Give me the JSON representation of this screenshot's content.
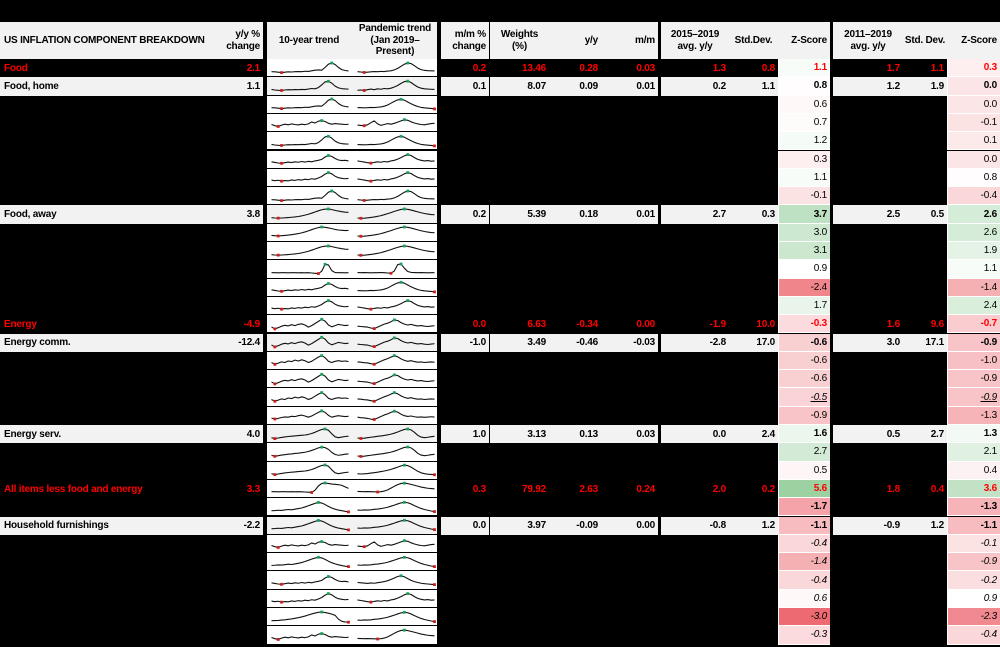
{
  "title": "US INFLATION COMPONENT BREAKDOWN",
  "headers": {
    "yoy_change": "y/y %\nchange",
    "trend10": "10-year trend",
    "trend_pandemic": "Pandemic trend\n(Jan 2019–Present)",
    "mm_change": "m/m %\nchange",
    "weights": "Weights\n(%)",
    "yy": "y/y",
    "mm": "m/m",
    "avg15": "2015–2019\navg. y/y",
    "sd15": "Std.Dev.",
    "z15": "Z-Score",
    "avg11": "2011–2019\navg. y/y",
    "sd11": "Std. Dev.",
    "z11": "Z-Score"
  },
  "colors": {
    "accent_red": "#ff0000",
    "row_gray": "#f2f2f2",
    "table_black": "#000000",
    "z_green_max": "#9cd1a2",
    "z_red_min": "#ed6a72",
    "spark_line": "#111111",
    "spark_max_marker": "#18a05e",
    "spark_min_marker": "#cf1d1d"
  },
  "z_scale": {
    "midpoint": 0.9,
    "green_at": 5.6,
    "red_at": -3.0
  },
  "chart_data": {
    "type": "table",
    "title": "US INFLATION COMPONENT BREAKDOWN",
    "columns": [
      "Component",
      "y/y % change",
      "10-year trend (sparkline)",
      "Pandemic trend Jan 2019–Present (sparkline)",
      "m/m % change",
      "Weights (%)",
      "y/y",
      "m/m",
      "2015–2019 avg. y/y",
      "Std.Dev.",
      "Z-Score",
      "2011–2019 avg. y/y",
      "Std. Dev.",
      "Z-Score"
    ],
    "labeled_rows": [
      [
        "Food",
        "2.1",
        "0.2",
        "13.46",
        "0.28",
        "0.03",
        "1.3",
        "0.8",
        "1.1",
        "1.7",
        "1.1",
        "0.3"
      ],
      [
        "Food, home",
        "1.1",
        "0.1",
        "8.07",
        "0.09",
        "0.01",
        "0.2",
        "1.1",
        "0.8",
        "1.2",
        "1.9",
        "0.0"
      ],
      [
        "Food, away",
        "3.8",
        "0.2",
        "5.39",
        "0.18",
        "0.01",
        "2.7",
        "0.3",
        "3.7",
        "2.5",
        "0.5",
        "2.6"
      ],
      [
        "Energy",
        "-4.9",
        "0.0",
        "6.63",
        "-0.34",
        "0.00",
        "-1.9",
        "10.0",
        "-0.3",
        "1.6",
        "9.6",
        "-0.7"
      ],
      [
        "Energy comm.",
        "-12.4",
        "-1.0",
        "3.49",
        "-0.46",
        "-0.03",
        "-2.8",
        "17.0",
        "-0.6",
        "3.0",
        "17.1",
        "-0.9"
      ],
      [
        "Energy serv.",
        "4.0",
        "1.0",
        "3.13",
        "0.13",
        "0.03",
        "0.0",
        "2.4",
        "1.6",
        "0.5",
        "2.7",
        "1.3"
      ],
      [
        "All items less food and energy",
        "3.3",
        "0.3",
        "79.92",
        "2.63",
        "0.24",
        "2.0",
        "0.2",
        "5.6",
        "1.8",
        "0.4",
        "3.6"
      ],
      [
        "Household furnishings",
        "-2.2",
        "0.0",
        "3.97",
        "-0.09",
        "0.00",
        "-0.8",
        "1.2",
        "-1.1",
        "-0.9",
        "1.2",
        "-1.1"
      ]
    ]
  },
  "spark_templates": {
    "f10": [
      30,
      29,
      27,
      24,
      27,
      29,
      28,
      30,
      31,
      30,
      33,
      32,
      36,
      40,
      42,
      40,
      58,
      80,
      88,
      78,
      58,
      44,
      38,
      35
    ],
    "f10b": [
      32,
      28,
      26,
      25,
      28,
      30,
      29,
      31,
      30,
      32,
      31,
      34,
      38,
      36,
      44,
      62,
      82,
      86,
      74,
      54,
      42,
      37,
      35,
      34
    ],
    "fp": [
      30,
      28,
      25,
      27,
      29,
      31,
      30,
      32,
      31,
      34,
      36,
      42,
      52,
      66,
      80,
      88,
      84,
      70,
      54,
      44,
      39,
      37,
      36,
      35
    ],
    "fpb": [
      26,
      28,
      25,
      30,
      34,
      30,
      36,
      33,
      38,
      36,
      40,
      48,
      58,
      72,
      84,
      87,
      78,
      62,
      48,
      40,
      36,
      34,
      33,
      32
    ],
    "fp_end": [
      31,
      30,
      29,
      30,
      32,
      31,
      33,
      35,
      40,
      48,
      60,
      72,
      82,
      86,
      80,
      68,
      56,
      46,
      38,
      32,
      29,
      27,
      25,
      22
    ],
    "chop10": [
      38,
      30,
      25,
      34,
      40,
      36,
      42,
      38,
      35,
      40,
      37,
      42,
      55,
      48,
      60,
      64,
      58,
      46,
      40,
      44,
      42,
      40,
      38,
      39
    ],
    "chop_p": [
      34,
      32,
      30,
      36,
      50,
      62,
      42,
      32,
      38,
      44,
      40,
      46,
      54,
      62,
      70,
      66,
      56,
      48,
      42,
      38,
      36,
      40,
      44,
      46
    ],
    "wig10": [
      36,
      32,
      28,
      26,
      30,
      34,
      31,
      36,
      33,
      38,
      34,
      39,
      36,
      42,
      46,
      52,
      68,
      78,
      72,
      58,
      48,
      44,
      46,
      42
    ],
    "wig10b": [
      34,
      30,
      33,
      27,
      31,
      29,
      35,
      32,
      37,
      34,
      40,
      37,
      43,
      40,
      48,
      58,
      74,
      84,
      76,
      60,
      50,
      46,
      43,
      45
    ],
    "wig_p": [
      42,
      38,
      34,
      30,
      27,
      32,
      36,
      33,
      38,
      35,
      42,
      46,
      54,
      64,
      76,
      84,
      78,
      64,
      52,
      46,
      42,
      44,
      40,
      42
    ],
    "wig_end": [
      38,
      36,
      34,
      32,
      35,
      33,
      37,
      40,
      44,
      50,
      58,
      68,
      78,
      83,
      76,
      64,
      52,
      44,
      38,
      33,
      30,
      28,
      26,
      24
    ],
    "fa10": [
      30,
      28,
      27,
      28,
      29,
      31,
      33,
      35,
      38,
      42,
      47,
      53,
      60,
      68,
      76,
      83,
      87,
      88,
      84,
      79,
      74,
      70,
      67,
      66
    ],
    "fa10b": [
      32,
      30,
      28,
      30,
      32,
      34,
      37,
      40,
      44,
      49,
      55,
      62,
      70,
      78,
      84,
      88,
      86,
      82,
      77,
      72,
      68,
      66,
      64,
      65
    ],
    "fap": [
      28,
      26,
      27,
      29,
      32,
      35,
      39,
      44,
      50,
      57,
      64,
      72,
      79,
      85,
      88,
      86,
      81,
      75,
      69,
      63,
      58,
      54,
      51,
      50
    ],
    "spike10": [
      30,
      30,
      29,
      30,
      30,
      29,
      30,
      30,
      29,
      30,
      29,
      30,
      28,
      26,
      24,
      40,
      86,
      82,
      44,
      31,
      30,
      30,
      29,
      30
    ],
    "spikep": [
      31,
      30,
      31,
      30,
      29,
      30,
      30,
      31,
      30,
      28,
      26,
      42,
      84,
      88,
      60,
      38,
      32,
      31,
      30,
      31,
      30,
      29,
      30,
      30
    ],
    "e10": [
      35,
      22,
      30,
      40,
      46,
      42,
      50,
      44,
      52,
      56,
      48,
      34,
      44,
      58,
      72,
      86,
      74,
      48,
      36,
      44,
      52,
      48,
      44,
      47
    ],
    "e10b": [
      38,
      26,
      34,
      42,
      38,
      48,
      44,
      54,
      48,
      56,
      50,
      38,
      46,
      60,
      74,
      84,
      70,
      46,
      38,
      46,
      50,
      46,
      48,
      44
    ],
    "e10s": [
      34,
      28,
      32,
      38,
      42,
      40,
      46,
      44,
      50,
      54,
      48,
      40,
      48,
      60,
      72,
      82,
      72,
      52,
      40,
      46,
      50,
      47,
      44,
      46
    ],
    "ep": [
      40,
      38,
      36,
      34,
      28,
      24,
      34,
      44,
      54,
      60,
      70,
      82,
      78,
      64,
      54,
      48,
      52,
      46,
      42,
      44,
      40,
      38,
      41,
      43
    ],
    "epb": [
      42,
      40,
      37,
      35,
      30,
      26,
      36,
      46,
      56,
      64,
      74,
      84,
      76,
      62,
      52,
      46,
      50,
      44,
      40,
      42,
      38,
      40,
      42,
      40
    ],
    "eps": [
      40,
      37,
      35,
      32,
      27,
      25,
      35,
      45,
      55,
      62,
      72,
      80,
      74,
      60,
      50,
      45,
      48,
      43,
      40,
      42,
      39,
      41,
      43,
      41
    ],
    "es10": [
      30,
      24,
      28,
      32,
      35,
      38,
      40,
      42,
      44,
      46,
      48,
      52,
      58,
      66,
      76,
      85,
      88,
      80,
      56,
      36,
      30,
      34,
      38,
      40
    ],
    "es10b": [
      32,
      26,
      30,
      34,
      37,
      40,
      42,
      45,
      47,
      50,
      53,
      58,
      65,
      73,
      82,
      87,
      84,
      72,
      52,
      38,
      33,
      36,
      40,
      42
    ],
    "esp": [
      28,
      25,
      27,
      30,
      33,
      36,
      39,
      42,
      45,
      49,
      54,
      60,
      68,
      77,
      85,
      88,
      82,
      66,
      46,
      34,
      30,
      33,
      37,
      39
    ],
    "esp_end": [
      30,
      28,
      29,
      31,
      34,
      37,
      40,
      44,
      48,
      53,
      59,
      66,
      74,
      82,
      87,
      84,
      74,
      60,
      46,
      36,
      30,
      27,
      25,
      23
    ],
    "core10": [
      30,
      30,
      29,
      30,
      30,
      29,
      30,
      29,
      30,
      29,
      28,
      27,
      25,
      40,
      68,
      85,
      88,
      85,
      81,
      79,
      77,
      72,
      62,
      52
    ],
    "corep": [
      32,
      31,
      30,
      31,
      30,
      29,
      28,
      30,
      34,
      42,
      54,
      66,
      77,
      85,
      87,
      84,
      79,
      73,
      67,
      61,
      57,
      53,
      51,
      49
    ],
    "hh10": [
      30,
      31,
      33,
      32,
      35,
      38,
      36,
      40,
      44,
      48,
      55,
      63,
      71,
      79,
      85,
      81,
      71,
      59,
      48,
      40,
      34,
      30,
      26,
      22
    ],
    "hh10b": [
      32,
      33,
      35,
      34,
      37,
      40,
      38,
      42,
      46,
      51,
      58,
      66,
      74,
      81,
      86,
      82,
      72,
      60,
      50,
      42,
      36,
      31,
      27,
      24
    ],
    "hhp": [
      34,
      33,
      35,
      34,
      36,
      39,
      41,
      44,
      48,
      53,
      60,
      67,
      75,
      82,
      86,
      83,
      75,
      64,
      54,
      45,
      38,
      33,
      28,
      24
    ],
    "drop10": [
      30,
      31,
      32,
      34,
      36,
      39,
      42,
      46,
      50,
      55,
      61,
      68,
      75,
      81,
      86,
      88,
      84,
      80,
      74,
      66,
      40,
      26,
      22,
      20
    ]
  },
  "rows": [
    {
      "label": "Food",
      "type": "total",
      "yoy": "2.1",
      "mm": "0.2",
      "w": "13.46",
      "yy": "0.28",
      "mmc": "0.03",
      "a15": "1.3",
      "sd15": "0.8",
      "z15": "1.1",
      "a11": "1.7",
      "sd11": "1.1",
      "z11": "0.3",
      "s10": "f10",
      "sp": "fp",
      "zs": "b"
    },
    {
      "label": "Food, home",
      "type": "named",
      "yoy": "1.1",
      "mm": "0.1",
      "w": "8.07",
      "yy": "0.09",
      "mmc": "0.01",
      "a15": "0.2",
      "sd15": "1.1",
      "z15": "0.8",
      "a11": "1.2",
      "sd11": "1.9",
      "z11": "0.0",
      "s10": "f10b",
      "sp": "fpb",
      "zs": "b"
    },
    {
      "type": "blank",
      "z15": "0.6",
      "z11": "0.0",
      "s10": "f10",
      "sp": "fp_end",
      "zs": "n"
    },
    {
      "type": "blank",
      "z15": "0.7",
      "z11": "-0.1",
      "s10": "chop10",
      "sp": "chop_p",
      "zs": "n"
    },
    {
      "type": "blank",
      "z15": "1.2",
      "z11": "0.1",
      "s10": "f10b",
      "sp": "fp_end",
      "zs": "n"
    },
    {
      "type": "blank",
      "z15": "0.3",
      "z11": "0.0",
      "s10": "wig10",
      "sp": "wig_p",
      "zs": "n"
    },
    {
      "type": "blank",
      "z15": "1.1",
      "z11": "0.8",
      "s10": "wig10b",
      "sp": "wig_p",
      "zs": "n"
    },
    {
      "type": "blank",
      "z15": "-0.1",
      "z11": "-0.4",
      "s10": "f10",
      "sp": "fp",
      "zs": "n"
    },
    {
      "label": "Food, away",
      "type": "named",
      "yoy": "3.8",
      "mm": "0.2",
      "w": "5.39",
      "yy": "0.18",
      "mmc": "0.01",
      "a15": "2.7",
      "sd15": "0.3",
      "z15": "3.7",
      "a11": "2.5",
      "sd11": "0.5",
      "z11": "2.6",
      "s10": "fa10",
      "sp": "fap",
      "zs": "b"
    },
    {
      "type": "blank",
      "z15": "3.0",
      "z11": "2.6",
      "s10": "fa10b",
      "sp": "fap",
      "zs": "n"
    },
    {
      "type": "blank",
      "z15": "3.1",
      "z11": "1.9",
      "s10": "fa10",
      "sp": "fap",
      "zs": "n"
    },
    {
      "type": "blank",
      "z15": "0.9",
      "z11": "1.1",
      "s10": "spike10",
      "sp": "spikep",
      "zs": "n"
    },
    {
      "type": "blank",
      "z15": "-2.4",
      "z11": "-1.4",
      "s10": "wig10",
      "sp": "fp_end",
      "zs": "n"
    },
    {
      "type": "blank",
      "z15": "1.7",
      "z11": "2.4",
      "s10": "wig10b",
      "sp": "wig_p",
      "zs": "n"
    },
    {
      "label": "Energy",
      "type": "total",
      "yoy": "-4.9",
      "mm": "0.0",
      "w": "6.63",
      "yy": "-0.34",
      "mmc": "0.00",
      "a15": "-1.9",
      "sd15": "10.0",
      "z15": "-0.3",
      "a11": "1.6",
      "sd11": "9.6",
      "z11": "-0.7",
      "s10": "e10",
      "sp": "ep",
      "zs": "b"
    },
    {
      "label": "Energy comm.",
      "type": "named",
      "yoy": "-12.4",
      "mm": "-1.0",
      "w": "3.49",
      "yy": "-0.46",
      "mmc": "-0.03",
      "a15": "-2.8",
      "sd15": "17.0",
      "z15": "-0.6",
      "a11": "3.0",
      "sd11": "17.1",
      "z11": "-0.9",
      "s10": "e10",
      "sp": "ep",
      "zs": "b"
    },
    {
      "type": "blank",
      "z15": "-0.6",
      "z11": "-1.0",
      "s10": "e10b",
      "sp": "epb",
      "zs": "n"
    },
    {
      "type": "blank",
      "z15": "-0.6",
      "z11": "-0.9",
      "s10": "e10",
      "sp": "ep",
      "zs": "n"
    },
    {
      "type": "blank",
      "z15": "-0.5",
      "z11": "-0.9",
      "s10": "e10b",
      "sp": "epb",
      "zs": "iu"
    },
    {
      "type": "blank",
      "z15": "-0.9",
      "z11": "-1.3",
      "s10": "e10s",
      "sp": "eps",
      "zs": "n"
    },
    {
      "label": "Energy serv.",
      "type": "named",
      "yoy": "4.0",
      "mm": "1.0",
      "w": "3.13",
      "yy": "0.13",
      "mmc": "0.03",
      "a15": "0.0",
      "sd15": "2.4",
      "z15": "1.6",
      "a11": "0.5",
      "sd11": "2.7",
      "z11": "1.3",
      "s10": "es10",
      "sp": "esp",
      "zs": "b"
    },
    {
      "type": "blank",
      "z15": "2.7",
      "z11": "2.1",
      "s10": "es10b",
      "sp": "esp",
      "zs": "n"
    },
    {
      "type": "blank",
      "z15": "0.5",
      "z11": "0.4",
      "s10": "es10",
      "sp": "esp_end",
      "zs": "n"
    },
    {
      "label": "All items less food and energy",
      "type": "total",
      "yoy": "3.3",
      "mm": "0.3",
      "w": "79.92",
      "yy": "2.63",
      "mmc": "0.24",
      "a15": "2.0",
      "sd15": "0.2",
      "z15": "5.6",
      "a11": "1.8",
      "sd11": "0.4",
      "z11": "3.6",
      "s10": "core10",
      "sp": "corep",
      "zs": "b"
    },
    {
      "type": "blank",
      "z15": "-1.7",
      "z11": "-1.3",
      "s10": "hh10",
      "sp": "hhp",
      "zs": "b"
    },
    {
      "label": "Household furnishings",
      "type": "named",
      "yoy": "-2.2",
      "mm": "0.0",
      "w": "3.97",
      "yy": "-0.09",
      "mmc": "0.00",
      "a15": "-0.8",
      "sd15": "1.2",
      "z15": "-1.1",
      "a11": "-0.9",
      "sd11": "1.2",
      "z11": "-1.1",
      "s10": "hh10",
      "sp": "hhp",
      "zs": "b"
    },
    {
      "type": "blank",
      "z15": "-0.4",
      "z11": "-0.1",
      "s10": "chop10",
      "sp": "chop_p",
      "zs": "i"
    },
    {
      "type": "blank",
      "z15": "-1.4",
      "z11": "-0.9",
      "s10": "hh10b",
      "sp": "hhp",
      "zs": "i"
    },
    {
      "type": "blank",
      "z15": "-0.4",
      "z11": "-0.2",
      "s10": "wig10",
      "sp": "wig_end",
      "zs": "i"
    },
    {
      "type": "blank",
      "z15": "0.6",
      "z11": "0.9",
      "s10": "wig10b",
      "sp": "wig_p",
      "zs": "i"
    },
    {
      "type": "blank",
      "z15": "-3.0",
      "z11": "-2.3",
      "s10": "drop10",
      "sp": "hhp",
      "zs": "i"
    },
    {
      "type": "blank",
      "z15": "-0.3",
      "z11": "-0.4",
      "s10": "chop10",
      "sp": "corep",
      "zs": "i"
    }
  ]
}
